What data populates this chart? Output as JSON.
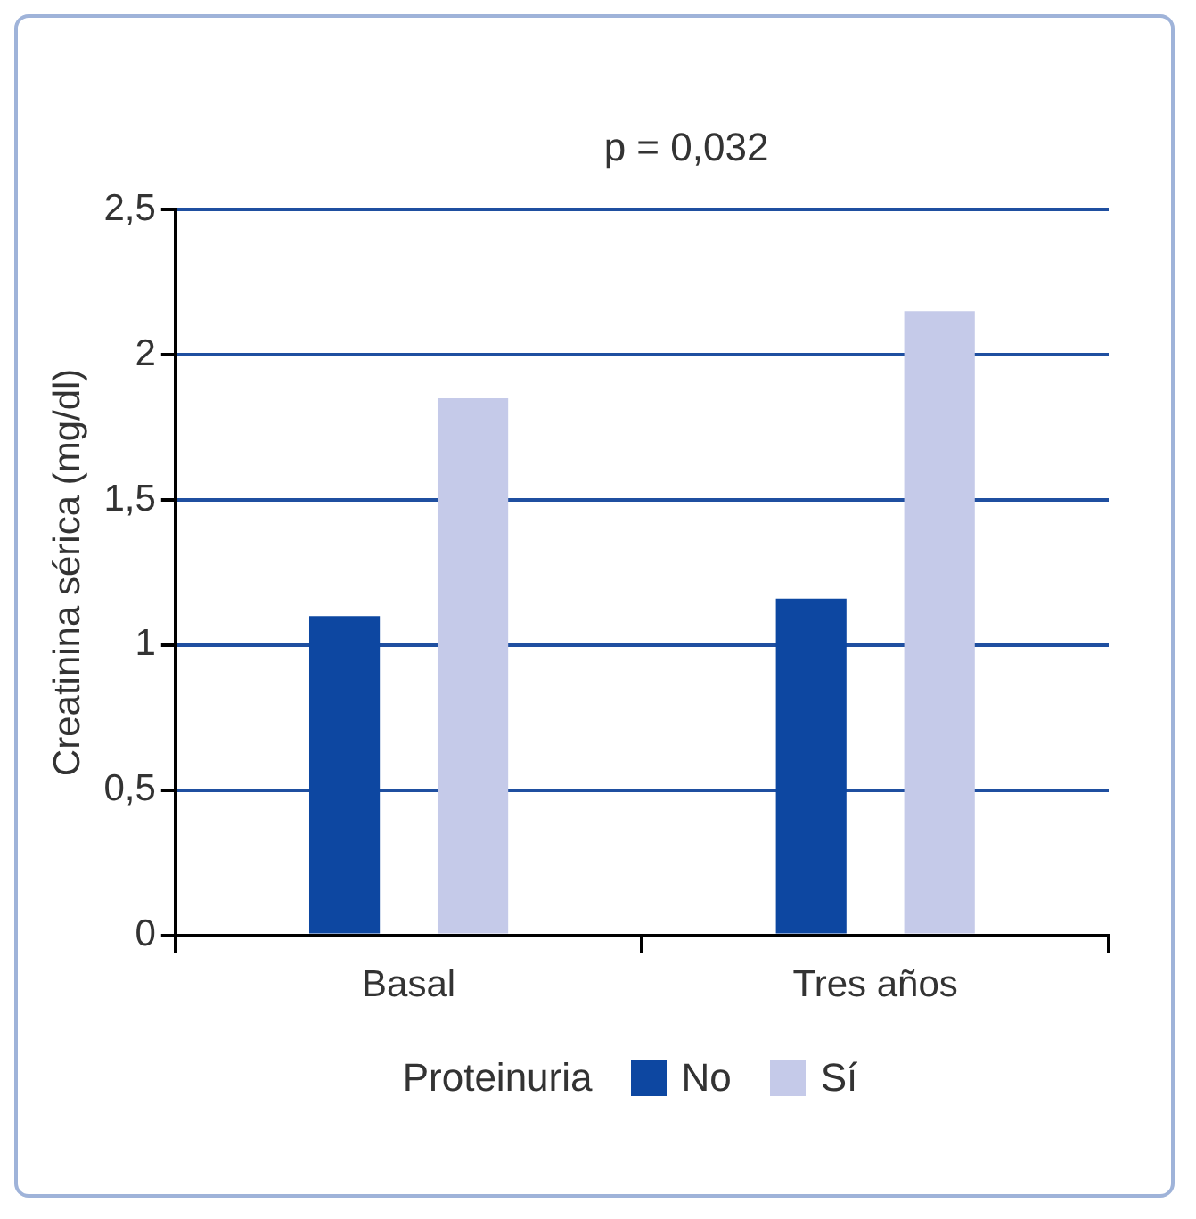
{
  "chart_data": {
    "type": "bar",
    "ylabel": "Creatinina sérica (mg/dl)",
    "annotations": [
      "p = 0,032"
    ],
    "legend_title": "Proteinuria",
    "legend": "bottom",
    "grid": "y",
    "categories": [
      "Basal",
      "Tres años"
    ],
    "series": [
      {
        "name": "No",
        "color": "#0d47a1",
        "values": [
          1.1,
          1.16
        ]
      },
      {
        "name": "Sí",
        "color": "#c5cae9",
        "values": [
          1.85,
          2.15
        ]
      }
    ],
    "ylim": [
      0,
      2.5
    ],
    "yticks": [
      {
        "value": 0,
        "label": "0"
      },
      {
        "value": 0.5,
        "label": "0,5"
      },
      {
        "value": 1,
        "label": "1"
      },
      {
        "value": 1.5,
        "label": "1,5"
      },
      {
        "value": 2,
        "label": "2"
      },
      {
        "value": 2.5,
        "label": "2,5"
      }
    ]
  }
}
